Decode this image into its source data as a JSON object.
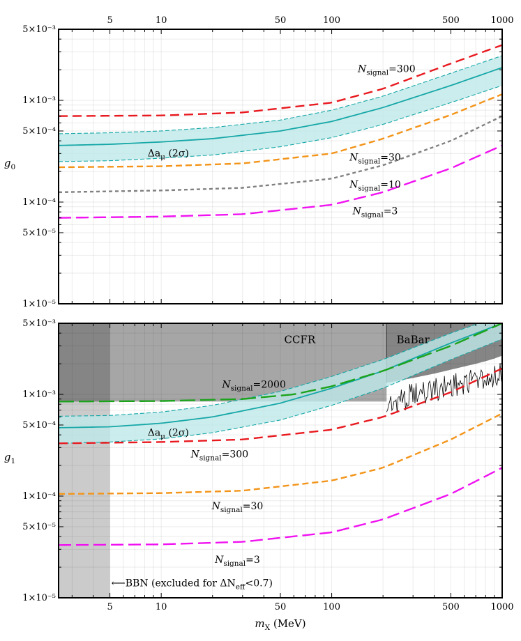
{
  "chart_data": [
    {
      "type": "line",
      "scale": {
        "x": "log",
        "y": "log"
      },
      "xlim": [
        2.5,
        1000
      ],
      "ylim": [
        1e-05,
        0.005
      ],
      "xlabel": "",
      "ylabel": {
        "main": "g",
        "sub": "0"
      },
      "grid": true,
      "top_ticks": [
        {
          "v": 5,
          "label": "5"
        },
        {
          "v": 10,
          "label": "10"
        },
        {
          "v": 50,
          "label": "50"
        },
        {
          "v": 100,
          "label": "100"
        },
        {
          "v": 500,
          "label": "500"
        },
        {
          "v": 1000,
          "label": "1000"
        }
      ],
      "y_ticks": [
        {
          "v": 0.005,
          "label": "5×10⁻³"
        },
        {
          "v": 0.001,
          "label": "1×10⁻³"
        },
        {
          "v": 0.0005,
          "label": "5×10⁻⁴"
        },
        {
          "v": 0.0001,
          "label": "1×10⁻⁴"
        },
        {
          "v": 5e-05,
          "label": "5×10⁻⁵"
        },
        {
          "v": 1e-05,
          "label": "1×10⁻⁵"
        }
      ],
      "band": {
        "x": [
          2.5,
          5,
          10,
          20,
          50,
          100,
          200,
          500,
          1000
        ],
        "center": [
          0.00036,
          0.00037,
          0.00039,
          0.00042,
          0.0005,
          0.00062,
          0.00085,
          0.0014,
          0.0021
        ],
        "lower": [
          0.00025,
          0.000255,
          0.00027,
          0.00029,
          0.00035,
          0.00043,
          0.00058,
          0.00095,
          0.0014
        ],
        "upper": [
          0.00047,
          0.00048,
          0.0005,
          0.00054,
          0.00064,
          0.0008,
          0.0011,
          0.00185,
          0.00275
        ],
        "label": {
          "text": "Δa",
          "sub": "μ",
          "rest": " (2σ)"
        }
      },
      "series": [
        {
          "name": "300",
          "color": "#e8191f",
          "dash": "13,7",
          "x": [
            2.5,
            10,
            30,
            100,
            200,
            500,
            1000
          ],
          "values": [
            0.0007,
            0.00071,
            0.00076,
            0.00095,
            0.0013,
            0.0023,
            0.0035
          ]
        },
        {
          "name": "30",
          "color": "#f39419",
          "dash": "9,5",
          "x": [
            2.5,
            10,
            30,
            100,
            200,
            500,
            1000
          ],
          "values": [
            0.00022,
            0.000225,
            0.00024,
            0.0003,
            0.00042,
            0.00072,
            0.00115
          ]
        },
        {
          "name": "10",
          "color": "#808080",
          "dash": "5,4",
          "x": [
            2.5,
            10,
            30,
            100,
            200,
            500,
            1000
          ],
          "values": [
            0.000125,
            0.00013,
            0.000138,
            0.00017,
            0.00023,
            0.0004,
            0.0007
          ]
        },
        {
          "name": "3",
          "color": "#f012f0",
          "dash": "18,7",
          "x": [
            2.5,
            10,
            30,
            100,
            200,
            500,
            1000
          ],
          "values": [
            7e-05,
            7.2e-05,
            7.6e-05,
            9.4e-05,
            0.000125,
            0.000215,
            0.00036
          ]
        }
      ],
      "curve_labels": [
        {
          "series": "300",
          "prefix": "N",
          "sub": "signal",
          "text": "=300",
          "x": 210,
          "y": 0.00189
        },
        {
          "series": "30",
          "prefix": "N",
          "sub": "signal",
          "text": "=30",
          "x": 180,
          "y": 0.000255
        },
        {
          "series": "10",
          "prefix": "N",
          "sub": "signal",
          "text": "=10",
          "x": 180,
          "y": 0.000138
        },
        {
          "series": "3",
          "prefix": "N",
          "sub": "signal",
          "text": "=3",
          "x": 180,
          "y": 7.6e-05
        }
      ]
    },
    {
      "type": "line",
      "scale": {
        "x": "log",
        "y": "log"
      },
      "xlim": [
        2.5,
        1000
      ],
      "ylim": [
        1e-05,
        0.005
      ],
      "xlabel": {
        "main": "m",
        "sub": "X",
        "rest": " (MeV)"
      },
      "ylabel": {
        "main": "g",
        "sub": "1"
      },
      "grid": true,
      "x_ticks": [
        {
          "v": 5,
          "label": "5"
        },
        {
          "v": 10,
          "label": "10"
        },
        {
          "v": 50,
          "label": "50"
        },
        {
          "v": 100,
          "label": "100"
        },
        {
          "v": 500,
          "label": "500"
        },
        {
          "v": 1000,
          "label": "1000"
        }
      ],
      "y_ticks": [
        {
          "v": 0.005,
          "label": "5×10⁻³"
        },
        {
          "v": 0.001,
          "label": "1×10⁻³"
        },
        {
          "v": 0.0005,
          "label": "5×10⁻⁴"
        },
        {
          "v": 0.0001,
          "label": "1×10⁻⁴"
        },
        {
          "v": 5e-05,
          "label": "5×10⁻⁵"
        },
        {
          "v": 1e-05,
          "label": "1×10⁻⁵"
        }
      ],
      "regions": {
        "bbn": {
          "x_max": 5,
          "label": "⟵BBN (excluded for ΔN",
          "sub": "eff",
          "rest": "<0.7)"
        },
        "ccfr": {
          "x_max": 210,
          "floor": 0.00085,
          "label": "CCFR"
        },
        "babar": {
          "x_min": 210,
          "label": "BaBar",
          "x": [
            210,
            300,
            400,
            500,
            600,
            700,
            800,
            900,
            1000
          ],
          "lower": [
            0.0013,
            0.00145,
            0.0016,
            0.00175,
            0.00188,
            0.002,
            0.00212,
            0.00225,
            0.0024
          ]
        }
      },
      "band": {
        "x": [
          2.5,
          5,
          10,
          20,
          50,
          100,
          200,
          500,
          1000
        ],
        "center": [
          0.00047,
          0.00048,
          0.00052,
          0.0006,
          0.00082,
          0.00115,
          0.0017,
          0.0032,
          0.005
        ],
        "lower": [
          0.00033,
          0.00034,
          0.000365,
          0.00042,
          0.00056,
          0.00078,
          0.00115,
          0.0022,
          0.0035
        ],
        "upper": [
          0.00061,
          0.00062,
          0.00067,
          0.00078,
          0.00107,
          0.0015,
          0.0022,
          0.004,
          0.006
        ],
        "label": {
          "text": "Δa",
          "sub": "μ",
          "rest": " (2σ)"
        }
      },
      "series": [
        {
          "name": "2000",
          "color": "#1ca31c",
          "dash": "22,7",
          "x": [
            2.5,
            10,
            30,
            60,
            100,
            200,
            500,
            1000
          ],
          "values": [
            0.00085,
            0.00086,
            0.0009,
            0.001,
            0.0012,
            0.0017,
            0.003,
            0.005
          ]
        },
        {
          "name": "300",
          "color": "#e8191f",
          "dash": "13,7",
          "x": [
            2.5,
            10,
            30,
            100,
            200,
            500,
            1000
          ],
          "values": [
            0.00033,
            0.00034,
            0.00036,
            0.00045,
            0.0006,
            0.00105,
            0.0018
          ]
        },
        {
          "name": "30",
          "color": "#f39419",
          "dash": "9,5",
          "x": [
            2.5,
            10,
            30,
            100,
            200,
            500,
            1000
          ],
          "values": [
            0.000105,
            0.000107,
            0.000113,
            0.000142,
            0.00019,
            0.00036,
            0.00065
          ]
        },
        {
          "name": "3",
          "color": "#f012f0",
          "dash": "18,7",
          "x": [
            2.5,
            10,
            30,
            100,
            200,
            500,
            1000
          ],
          "values": [
            3.3e-05,
            3.35e-05,
            3.55e-05,
            4.4e-05,
            5.9e-05,
            0.000105,
            0.00019
          ]
        }
      ],
      "babar_limit": {
        "color": "#000000",
        "x_min": 210,
        "x_max": 1000,
        "points": 110,
        "low": [
          0.0006,
          0.00075,
          0.0009,
          0.00105,
          0.0012
        ],
        "high": [
          0.0011,
          0.00135,
          0.0016,
          0.00185,
          0.0021
        ]
      },
      "curve_labels": [
        {
          "series": "2000",
          "prefix": "N",
          "sub": "signal",
          "text": "=2000",
          "x": 35,
          "y": 0.00116
        },
        {
          "series": "300",
          "prefix": "N",
          "sub": "signal",
          "text": "=300",
          "x": 22,
          "y": 0.00024
        },
        {
          "series": "30",
          "prefix": "N",
          "sub": "signal",
          "text": "=30",
          "x": 28,
          "y": 7.4e-05
        },
        {
          "series": "3",
          "prefix": "N",
          "sub": "signal",
          "text": "=3",
          "x": 28,
          "y": 2.2e-05
        }
      ]
    }
  ]
}
